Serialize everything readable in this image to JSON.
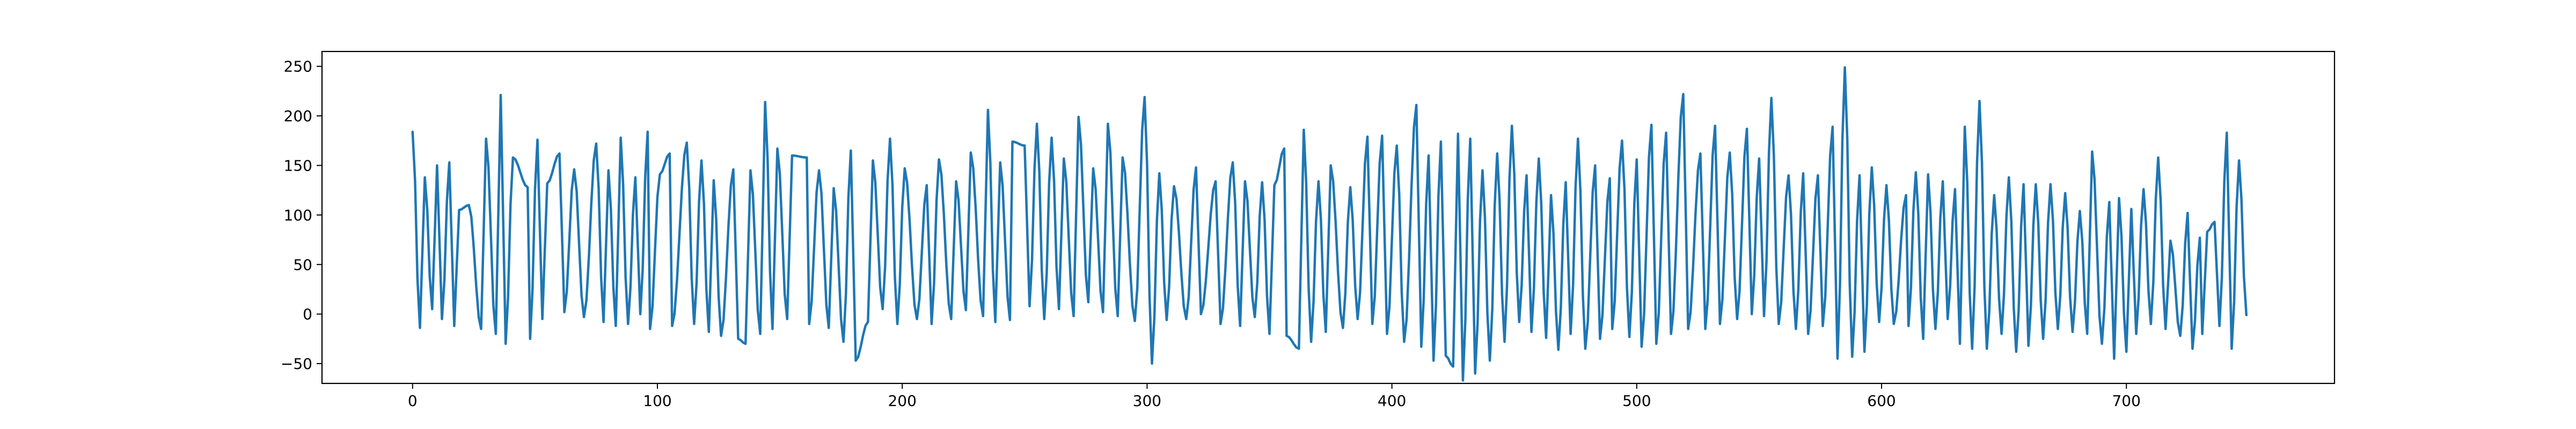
{
  "chart_data": {
    "type": "line",
    "title": "",
    "xlabel": "",
    "ylabel": "",
    "xlim": [
      -37,
      785
    ],
    "ylim": [
      -70,
      265
    ],
    "x_ticks": [
      0,
      100,
      200,
      300,
      400,
      500,
      600,
      700
    ],
    "y_ticks": [
      -50,
      0,
      50,
      100,
      150,
      200,
      250
    ],
    "grid": false,
    "legend": "none",
    "series": [
      {
        "color": "#1f77b4",
        "x_start": 0,
        "x_end": 749,
        "sample_every": 1,
        "peaks": [
          [
            0,
            184
          ],
          [
            5,
            138
          ],
          [
            10,
            150
          ],
          [
            15,
            153
          ],
          [
            19,
            105
          ],
          [
            23,
            110
          ],
          [
            30,
            177
          ],
          [
            36,
            221
          ],
          [
            41,
            158
          ],
          [
            47,
            128
          ],
          [
            51,
            176
          ],
          [
            55,
            132
          ],
          [
            60,
            162
          ],
          [
            66,
            146
          ],
          [
            75,
            172
          ],
          [
            80,
            145
          ],
          [
            85,
            178
          ],
          [
            91,
            138
          ],
          [
            96,
            184
          ],
          [
            101,
            141
          ],
          [
            105,
            162
          ],
          [
            112,
            173
          ],
          [
            118,
            155
          ],
          [
            123,
            135
          ],
          [
            131,
            146
          ],
          [
            138,
            145
          ],
          [
            144,
            214
          ],
          [
            149,
            167
          ],
          [
            155,
            160
          ],
          [
            161,
            158
          ],
          [
            166,
            145
          ],
          [
            172,
            127
          ],
          [
            179,
            165
          ],
          [
            188,
            155
          ],
          [
            195,
            177
          ],
          [
            201,
            147
          ],
          [
            210,
            130
          ],
          [
            215,
            156
          ],
          [
            222,
            134
          ],
          [
            228,
            163
          ],
          [
            235,
            206
          ],
          [
            240,
            153
          ],
          [
            245,
            174
          ],
          [
            250,
            170
          ],
          [
            255,
            192
          ],
          [
            261,
            178
          ],
          [
            266,
            157
          ],
          [
            272,
            199
          ],
          [
            278,
            147
          ],
          [
            284,
            192
          ],
          [
            290,
            158
          ],
          [
            299,
            219
          ],
          [
            305,
            142
          ],
          [
            311,
            129
          ],
          [
            320,
            148
          ],
          [
            328,
            134
          ],
          [
            335,
            153
          ],
          [
            340,
            134
          ],
          [
            347,
            133
          ],
          [
            352,
            130
          ],
          [
            356,
            167
          ],
          [
            364,
            186
          ],
          [
            370,
            134
          ],
          [
            375,
            150
          ],
          [
            383,
            128
          ],
          [
            390,
            179
          ],
          [
            396,
            180
          ],
          [
            402,
            170
          ],
          [
            410,
            211
          ],
          [
            415,
            160
          ],
          [
            420,
            174
          ],
          [
            427,
            182
          ],
          [
            432,
            177
          ],
          [
            437,
            145
          ],
          [
            443,
            162
          ],
          [
            449,
            190
          ],
          [
            455,
            140
          ],
          [
            460,
            157
          ],
          [
            465,
            120
          ],
          [
            471,
            133
          ],
          [
            476,
            177
          ],
          [
            483,
            150
          ],
          [
            489,
            137
          ],
          [
            494,
            175
          ],
          [
            500,
            156
          ],
          [
            506,
            191
          ],
          [
            512,
            183
          ],
          [
            519,
            222
          ],
          [
            526,
            162
          ],
          [
            532,
            190
          ],
          [
            538,
            163
          ],
          [
            545,
            187
          ],
          [
            550,
            157
          ],
          [
            555,
            218
          ],
          [
            562,
            140
          ],
          [
            568,
            142
          ],
          [
            574,
            140
          ],
          [
            580,
            189
          ],
          [
            585,
            249
          ],
          [
            591,
            140
          ],
          [
            596,
            148
          ],
          [
            602,
            130
          ],
          [
            610,
            120
          ],
          [
            614,
            143
          ],
          [
            619,
            141
          ],
          [
            625,
            134
          ],
          [
            630,
            126
          ],
          [
            634,
            189
          ],
          [
            640,
            215
          ],
          [
            646,
            120
          ],
          [
            652,
            138
          ],
          [
            658,
            131
          ],
          [
            663,
            131
          ],
          [
            669,
            131
          ],
          [
            675,
            122
          ],
          [
            681,
            104
          ],
          [
            686,
            164
          ],
          [
            693,
            113
          ],
          [
            697,
            117
          ],
          [
            702,
            106
          ],
          [
            707,
            126
          ],
          [
            713,
            158
          ],
          [
            718,
            74
          ],
          [
            725,
            102
          ],
          [
            730,
            77
          ],
          [
            733,
            83
          ],
          [
            736,
            93
          ],
          [
            741,
            183
          ],
          [
            746,
            155
          ]
        ],
        "troughs": [
          [
            3,
            -14
          ],
          [
            8,
            5
          ],
          [
            12,
            -5
          ],
          [
            17,
            -12
          ],
          [
            28,
            -15
          ],
          [
            34,
            -20
          ],
          [
            38,
            -30
          ],
          [
            48,
            -25
          ],
          [
            53,
            -5
          ],
          [
            62,
            2
          ],
          [
            70,
            -3
          ],
          [
            78,
            -8
          ],
          [
            83,
            -12
          ],
          [
            88,
            -10
          ],
          [
            93,
            0
          ],
          [
            97,
            -15
          ],
          [
            106,
            -12
          ],
          [
            115,
            -10
          ],
          [
            121,
            -18
          ],
          [
            126,
            -22
          ],
          [
            133,
            -25
          ],
          [
            136,
            -30
          ],
          [
            142,
            -20
          ],
          [
            147,
            -15
          ],
          [
            153,
            -5
          ],
          [
            162,
            -10
          ],
          [
            170,
            -14
          ],
          [
            176,
            -28
          ],
          [
            181,
            -47
          ],
          [
            186,
            -8
          ],
          [
            192,
            5
          ],
          [
            198,
            -10
          ],
          [
            206,
            -5
          ],
          [
            212,
            -10
          ],
          [
            220,
            -5
          ],
          [
            226,
            4
          ],
          [
            233,
            -2
          ],
          [
            238,
            -8
          ],
          [
            244,
            -6
          ],
          [
            252,
            8
          ],
          [
            258,
            -5
          ],
          [
            264,
            5
          ],
          [
            270,
            -2
          ],
          [
            276,
            12
          ],
          [
            282,
            2
          ],
          [
            288,
            -2
          ],
          [
            295,
            -7
          ],
          [
            302,
            -50
          ],
          [
            308,
            -6
          ],
          [
            316,
            -5
          ],
          [
            322,
            0
          ],
          [
            330,
            -10
          ],
          [
            338,
            -12
          ],
          [
            344,
            -3
          ],
          [
            350,
            -20
          ],
          [
            357,
            -22
          ],
          [
            362,
            -35
          ],
          [
            367,
            -28
          ],
          [
            373,
            -18
          ],
          [
            380,
            -14
          ],
          [
            386,
            -5
          ],
          [
            392,
            -10
          ],
          [
            398,
            -20
          ],
          [
            405,
            -28
          ],
          [
            412,
            -33
          ],
          [
            417,
            -47
          ],
          [
            422,
            -42
          ],
          [
            425,
            -53
          ],
          [
            429,
            -67
          ],
          [
            434,
            -60
          ],
          [
            440,
            -47
          ],
          [
            446,
            -28
          ],
          [
            452,
            -8
          ],
          [
            457,
            -18
          ],
          [
            463,
            -24
          ],
          [
            468,
            -36
          ],
          [
            473,
            -20
          ],
          [
            479,
            -35
          ],
          [
            485,
            -25
          ],
          [
            490,
            -15
          ],
          [
            497,
            -23
          ],
          [
            502,
            -33
          ],
          [
            508,
            -30
          ],
          [
            514,
            -20
          ],
          [
            521,
            -15
          ],
          [
            528,
            -15
          ],
          [
            534,
            -10
          ],
          [
            541,
            -5
          ],
          [
            547,
            0
          ],
          [
            552,
            -2
          ],
          [
            558,
            -10
          ],
          [
            565,
            -15
          ],
          [
            570,
            -20
          ],
          [
            576,
            -12
          ],
          [
            582,
            -45
          ],
          [
            588,
            -43
          ],
          [
            593,
            -38
          ],
          [
            599,
            -8
          ],
          [
            605,
            -10
          ],
          [
            611,
            -12
          ],
          [
            617,
            -25
          ],
          [
            622,
            -15
          ],
          [
            627,
            -5
          ],
          [
            632,
            -30
          ],
          [
            637,
            -35
          ],
          [
            643,
            -35
          ],
          [
            649,
            -20
          ],
          [
            655,
            -38
          ],
          [
            660,
            -32
          ],
          [
            666,
            -25
          ],
          [
            672,
            -15
          ],
          [
            678,
            -18
          ],
          [
            684,
            -20
          ],
          [
            690,
            -30
          ],
          [
            695,
            -45
          ],
          [
            700,
            -38
          ],
          [
            704,
            -20
          ],
          [
            710,
            -10
          ],
          [
            716,
            -15
          ],
          [
            722,
            -22
          ],
          [
            727,
            -35
          ],
          [
            731,
            -20
          ],
          [
            738,
            -12
          ],
          [
            743,
            -35
          ],
          [
            749,
            -1
          ]
        ]
      }
    ]
  }
}
